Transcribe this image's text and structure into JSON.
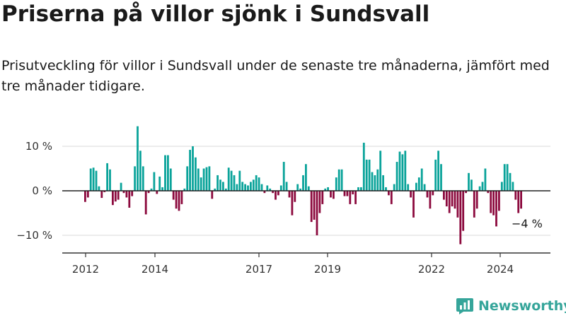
{
  "header": {
    "title": "Priserna på villor sjönk i Sundsvall",
    "subtitle": "Prisutveckling för villor i Sundsvall under de senaste tre månaderna, jämfört med tre månader tidigare."
  },
  "brand": {
    "name": "Newsworthy",
    "icon": "newsworthy-logo-icon",
    "color": "#35a59a"
  },
  "colors": {
    "positive": "#0aa39a",
    "negative": "#8c0a3e",
    "grid": "#d9d9d9",
    "axis": "#333333"
  },
  "chart_data": {
    "type": "bar",
    "title": "",
    "xlabel": "",
    "ylabel": "",
    "ylim": [
      -13,
      16
    ],
    "yticks": [
      {
        "value": 10,
        "label": "10 %"
      },
      {
        "value": 0,
        "label": "0 %"
      },
      {
        "value": -10,
        "label": "−10 %"
      }
    ],
    "xticks": [
      "2012",
      "2014",
      "2017",
      "2019",
      "2022",
      "2024"
    ],
    "grid": true,
    "last_value_label": "−4 %",
    "series": [
      {
        "values": [
          -2.5,
          -1.5,
          5,
          5.2,
          4.5,
          1,
          -1.6,
          -0.3,
          6.2,
          4.8,
          -3.2,
          -2.4,
          -2,
          1.8,
          -0.5,
          -1.5,
          -3.8,
          -1.2,
          5.5,
          14.5,
          9,
          5.5,
          -5.3,
          -0.5,
          0.5,
          4.2,
          -0.7,
          3.2,
          0.8,
          8,
          8,
          5,
          -2,
          -4,
          -4.5,
          -3,
          0.5,
          5.5,
          9.2,
          10,
          7.5,
          5,
          3,
          5,
          5.3,
          5.5,
          -1.8,
          0.5,
          3.5,
          2.5,
          2,
          0.5,
          5.2,
          4.5,
          3.5,
          1.5,
          4.5,
          2,
          1.5,
          1.2,
          2,
          2.5,
          3.5,
          3,
          1.5,
          -0.5,
          1.2,
          0.5,
          -0.5,
          -2,
          -1,
          1.2,
          6.5,
          2,
          -1.5,
          -5.5,
          -2.5,
          1.5,
          0.5,
          3.5,
          6,
          1,
          -7,
          -6.5,
          -10,
          -5,
          -3,
          0.5,
          0.8,
          -1.5,
          -1.8,
          3,
          4.8,
          4.8,
          -1.2,
          -1.2,
          -3,
          -0.8,
          -3,
          0.8,
          0.8,
          10.8,
          7,
          7,
          4.2,
          3.5,
          4.8,
          9,
          3.5,
          0.8,
          -1,
          -3,
          1.5,
          6.5,
          8.8,
          8.2,
          9,
          1.5,
          -1.5,
          -6,
          1.8,
          3,
          5,
          1.5,
          -1.5,
          -4,
          -1,
          7,
          9,
          6,
          -2,
          -3.5,
          -5,
          -3.5,
          -4,
          -6,
          -12,
          -9,
          -0.5,
          4,
          2.5,
          -6,
          -4,
          1,
          2,
          5,
          -0.5,
          -5,
          -5.5,
          -8,
          -4.5,
          2,
          6,
          6,
          4,
          2,
          -2,
          -5,
          -4
        ]
      }
    ]
  }
}
